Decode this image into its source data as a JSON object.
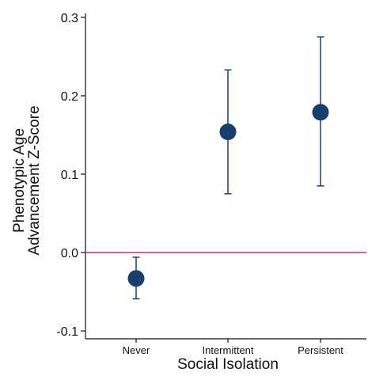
{
  "chart_data": {
    "type": "scatter",
    "title": "",
    "xlabel": "Social Isolation",
    "ylabel_lines": [
      "Phenotypic Age",
      "Advancement Z-Score"
    ],
    "categories": [
      "Never",
      "Intermittent",
      "Persistent"
    ],
    "series": [
      {
        "estimates": [
          -0.033,
          0.154,
          0.179
        ],
        "ci_lower": [
          -0.059,
          0.075,
          0.085
        ],
        "ci_upper": [
          -0.006,
          0.233,
          0.275
        ]
      }
    ],
    "ylim": [
      -0.11,
      0.305
    ],
    "yticks": [
      -0.1,
      0.0,
      0.1,
      0.2,
      0.3
    ],
    "ytick_labels": [
      "-0.1",
      "0.0",
      "0.1",
      "0.2",
      "0.3"
    ],
    "reference_line": {
      "y": 0,
      "color": "#c41e4a"
    },
    "point_color": "#1a3f6e",
    "grid": false,
    "legend": "none"
  }
}
